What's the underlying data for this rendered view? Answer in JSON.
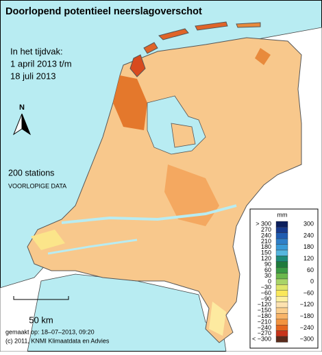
{
  "title": "Doorlopend potentieel neerslagoverschot",
  "period": {
    "label": "In het tijdvak:",
    "start": "1 april 2013 t/m",
    "end": "18 juli 2013"
  },
  "north": "N",
  "stations": "200 stations",
  "status": "VOORLOPIGE DATA",
  "scale": "50 km",
  "made": "gemaakt op: 18–07–2013, 09:20",
  "copyright": "(c) 2011, KNMI Klimaatdata en Advies",
  "legend": {
    "unit": "mm",
    "colors": [
      "#0c1f5c",
      "#173a8c",
      "#1f5cb0",
      "#2f7fc8",
      "#3a9ad6",
      "#55b6de",
      "#1c8a78",
      "#1f7a3c",
      "#3a9a44",
      "#6cb84c",
      "#a8d468",
      "#dfe66a",
      "#fae85a",
      "#fdf0a0",
      "#fde2b0",
      "#fbcf8e",
      "#f8b468",
      "#f29440",
      "#e4661e",
      "#c8341a",
      "#5a2c1c"
    ],
    "left_labels": [
      "> 300",
      "270",
      "240",
      "210",
      "180",
      "150",
      "120",
      "90",
      "60",
      "30",
      "0",
      "−30",
      "−60",
      "−90",
      "−120",
      "−150",
      "−180",
      "−210",
      "−240",
      "−270",
      "< −300"
    ],
    "right_labels": [
      "300",
      "240",
      "180",
      "120",
      "60",
      "0",
      "−60",
      "−120",
      "−180",
      "−240",
      "−300"
    ]
  }
}
